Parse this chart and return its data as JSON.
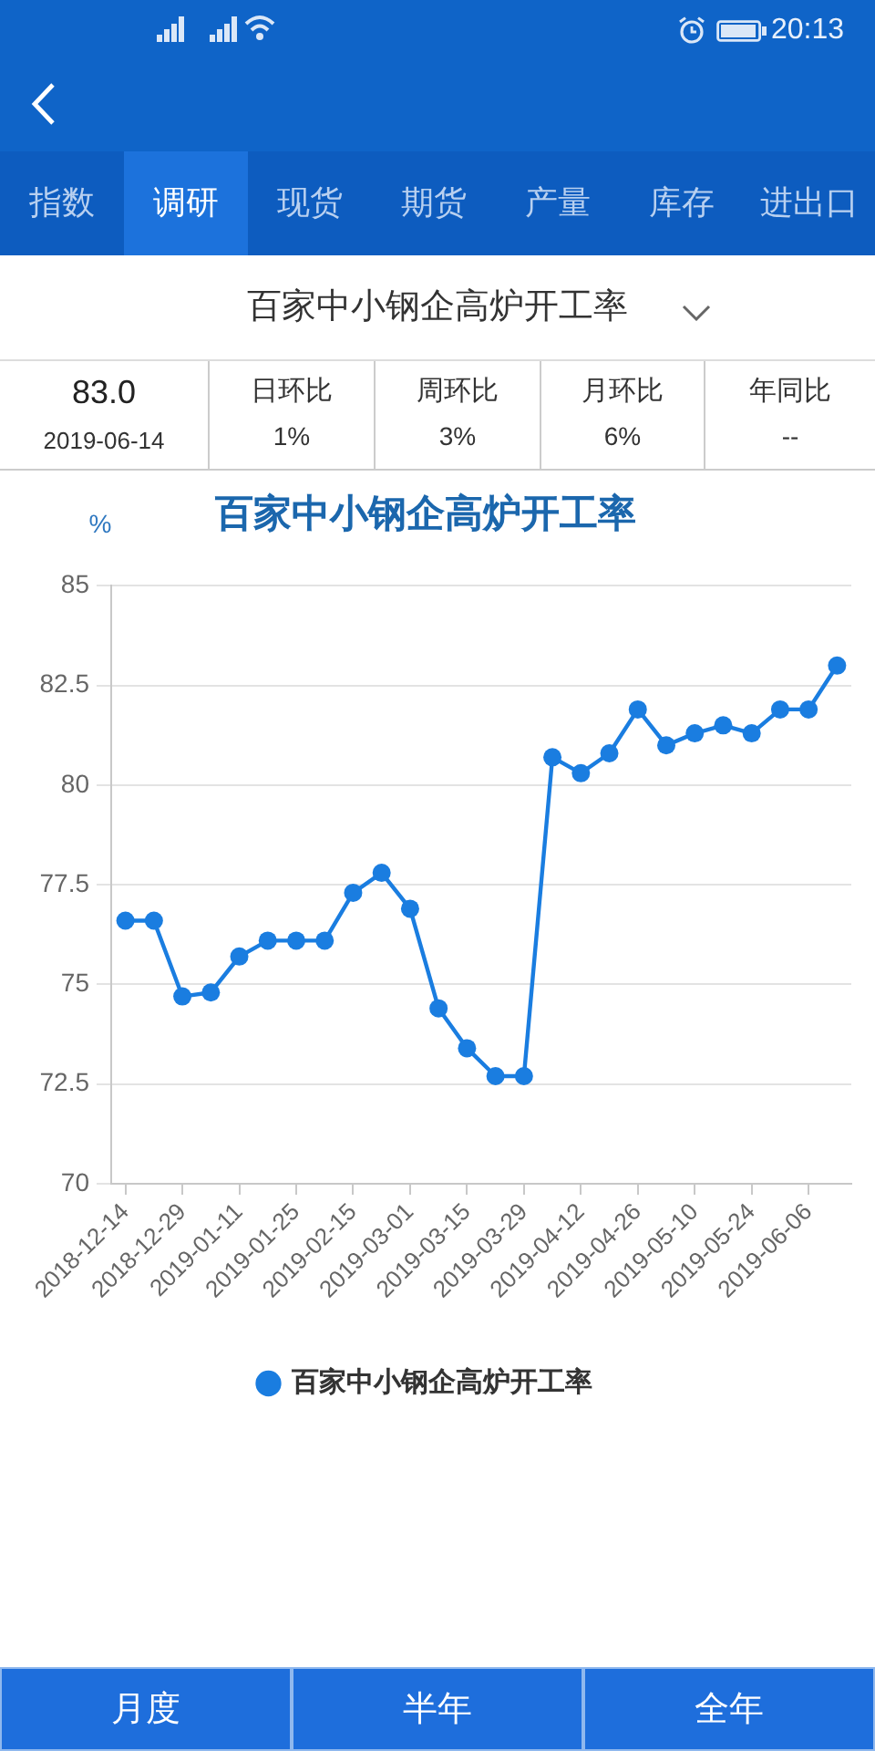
{
  "chart_data": {
    "type": "line",
    "title": "百家中小钢企高炉开工率",
    "ylabel": "%",
    "categories": [
      "2018-12-14",
      null,
      "2018-12-29",
      null,
      "2019-01-11",
      null,
      "2019-01-25",
      null,
      "2019-02-15",
      null,
      "2019-03-01",
      null,
      "2019-03-15",
      null,
      "2019-03-29",
      null,
      "2019-04-12",
      null,
      "2019-04-26",
      null,
      "2019-05-10",
      null,
      "2019-05-24",
      null,
      "2019-06-06",
      null
    ],
    "series": [
      {
        "name": "百家中小钢企高炉开工率",
        "color": "#1a7de0",
        "values": [
          76.6,
          76.6,
          74.7,
          74.8,
          75.7,
          76.1,
          76.1,
          76.1,
          77.3,
          77.8,
          76.9,
          74.4,
          73.4,
          72.7,
          72.7,
          80.7,
          80.3,
          80.8,
          81.9,
          81.0,
          81.3,
          81.5,
          81.3,
          81.9,
          81.9,
          83.0
        ]
      }
    ],
    "ylim": [
      70,
      85
    ],
    "yticks": [
      70,
      72.5,
      75,
      77.5,
      80,
      82.5,
      85
    ],
    "grid": "y",
    "legend": "bottom",
    "marker": "circle",
    "annotations": [
      "20:13",
      "指数",
      "调研",
      "现货",
      "期货",
      "产量",
      "库存",
      "进出口",
      "百家中小钢企高炉开工率",
      "83.0",
      "2019-06-14",
      "日环比",
      "1%",
      "周环比",
      "3%",
      "月环比",
      "6%",
      "年同比",
      "--",
      "月度",
      "半年",
      "全年"
    ]
  }
}
